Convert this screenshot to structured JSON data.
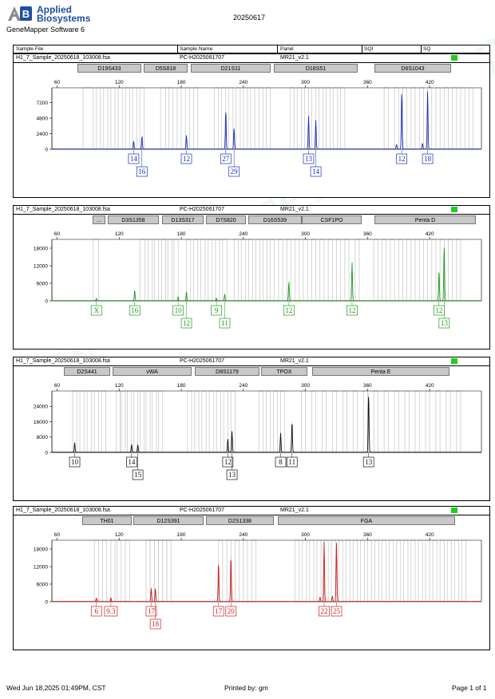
{
  "header": {
    "logo_line1": "Applied",
    "logo_line2": "Biosystems",
    "software": "GeneMapper Software 6",
    "report_date": "20250617",
    "columns": [
      "Sample File",
      "Sample Name",
      "Panel",
      "SQI",
      "SQ"
    ]
  },
  "colors": {
    "blue": "#1a2fb8",
    "green": "#1f9a1f",
    "black": "#111111",
    "red": "#cc1f1f",
    "quality": "#22cc22"
  },
  "panels": [
    {
      "sample_file": "H1_7_Sample_20250618_103008.fsa",
      "sample_name": "PC-H2025061707",
      "panel_name": "MR21_v2.1",
      "loci": [
        "D19S433",
        "D5S818",
        "D21S11",
        "D18S51",
        "D6S1043"
      ]
    },
    {
      "sample_file": "H1_7_Sample_20250618_103008.fsa",
      "sample_name": "PC-H2025061707",
      "panel_name": "MR21_v2.1",
      "loci": [
        "...",
        "D3S1358",
        "D13S317",
        "D7S820",
        "D16S539",
        "CSF1PO",
        "Penta D"
      ]
    },
    {
      "sample_file": "H1_7_Sample_20250618_103008.fsa",
      "sample_name": "PC-H2025061707",
      "panel_name": "MR21_v2.1",
      "loci": [
        "D2S441",
        "vWA",
        "D8S1179",
        "TPOX",
        "Penta E"
      ]
    },
    {
      "sample_file": "H1_7_Sample_20250618_103008.fsa",
      "sample_name": "PC-H2025061707",
      "panel_name": "MR21_v2.1",
      "loci": [
        "TH01",
        "D12S391",
        "D2S1338",
        "FGA"
      ]
    }
  ],
  "chart_data": [
    {
      "type": "line",
      "dye": "blue",
      "x_ticks": [
        60,
        120,
        180,
        240,
        300,
        360,
        420
      ],
      "y_ticks": [
        0,
        2400,
        4800,
        7200
      ],
      "xlim": [
        55,
        470
      ],
      "ylim": [
        0,
        9500
      ],
      "bins": [
        [
          85,
          95
        ],
        [
          98,
          102
        ],
        [
          105,
          109
        ],
        [
          112,
          116
        ],
        [
          119,
          123
        ],
        [
          126,
          130
        ],
        [
          133,
          137
        ],
        [
          140,
          144
        ],
        [
          160,
          165
        ],
        [
          168,
          172
        ],
        [
          176,
          180
        ],
        [
          184,
          188
        ],
        [
          192,
          196
        ],
        [
          212,
          216
        ],
        [
          219,
          223
        ],
        [
          226,
          230
        ],
        [
          233,
          237
        ],
        [
          240,
          244
        ],
        [
          247,
          251
        ],
        [
          255,
          259
        ],
        [
          262,
          266
        ],
        [
          285,
          289
        ],
        [
          292,
          296
        ],
        [
          299,
          303
        ],
        [
          306,
          310
        ],
        [
          313,
          317
        ],
        [
          320,
          324
        ],
        [
          327,
          331
        ],
        [
          334,
          338
        ],
        [
          376,
          380
        ],
        [
          386,
          390
        ],
        [
          394,
          398
        ],
        [
          402,
          406
        ],
        [
          410,
          414
        ],
        [
          418,
          422
        ],
        [
          426,
          430
        ],
        [
          434,
          438
        ],
        [
          442,
          446
        ],
        [
          450,
          454
        ],
        [
          458,
          462
        ]
      ],
      "peaks": [
        {
          "x": 134,
          "height": 1200,
          "allele": "14"
        },
        {
          "x": 142,
          "height": 2000,
          "allele": "16"
        },
        {
          "x": 185,
          "height": 2100,
          "allele": "12"
        },
        {
          "x": 223,
          "height": 6100,
          "allele": "27"
        },
        {
          "x": 231,
          "height": 3300,
          "allele": "29"
        },
        {
          "x": 303,
          "height": 5100,
          "allele": "13"
        },
        {
          "x": 310,
          "height": 4500,
          "allele": "14"
        },
        {
          "x": 393,
          "height": 9000,
          "allele": "12"
        },
        {
          "x": 418,
          "height": 9000,
          "allele": "18"
        }
      ],
      "minor_peaks": [
        {
          "x": 388,
          "height": 700
        },
        {
          "x": 413,
          "height": 900
        }
      ]
    },
    {
      "type": "line",
      "dye": "green",
      "x_ticks": [
        60,
        120,
        180,
        240,
        300,
        360,
        420
      ],
      "y_ticks": [
        0,
        6000,
        12000,
        18000
      ],
      "xlim": [
        55,
        470
      ],
      "ylim": [
        0,
        21000
      ],
      "bins": [
        [
          95,
          100
        ],
        [
          140,
          145
        ],
        [
          148,
          152
        ],
        [
          154,
          158
        ],
        [
          161,
          165
        ],
        [
          167,
          171
        ],
        [
          173,
          177
        ],
        [
          185,
          189
        ],
        [
          192,
          196
        ],
        [
          199,
          203
        ],
        [
          206,
          210
        ],
        [
          213,
          217
        ],
        [
          220,
          224
        ],
        [
          231,
          235
        ],
        [
          238,
          242
        ],
        [
          245,
          249
        ],
        [
          252,
          256
        ],
        [
          259,
          263
        ],
        [
          266,
          270
        ],
        [
          274,
          278
        ],
        [
          282,
          286
        ],
        [
          290,
          294
        ],
        [
          298,
          302
        ],
        [
          306,
          310
        ],
        [
          314,
          318
        ],
        [
          322,
          326
        ],
        [
          330,
          334
        ],
        [
          338,
          342
        ],
        [
          348,
          352
        ],
        [
          366,
          370
        ],
        [
          374,
          378
        ],
        [
          382,
          386
        ],
        [
          390,
          394
        ],
        [
          398,
          402
        ],
        [
          406,
          410
        ],
        [
          414,
          418
        ],
        [
          422,
          426
        ],
        [
          430,
          434
        ],
        [
          438,
          442
        ],
        [
          446,
          450
        ]
      ],
      "peaks": [
        {
          "x": 98,
          "height": 800,
          "allele": "X"
        },
        {
          "x": 135,
          "height": 3500,
          "allele": "16"
        },
        {
          "x": 177,
          "height": 1300,
          "allele": "10"
        },
        {
          "x": 185,
          "height": 3000,
          "allele": "12"
        },
        {
          "x": 214,
          "height": 800,
          "allele": "9"
        },
        {
          "x": 222,
          "height": 2200,
          "allele": "11"
        },
        {
          "x": 284,
          "height": 6500,
          "allele": "12"
        },
        {
          "x": 345,
          "height": 13000,
          "allele": "12"
        },
        {
          "x": 429,
          "height": 10000,
          "allele": "12"
        },
        {
          "x": 434,
          "height": 19000,
          "allele": "13"
        }
      ],
      "minor_peaks": []
    },
    {
      "type": "line",
      "dye": "black",
      "x_ticks": [
        60,
        120,
        180,
        240,
        300,
        360,
        420
      ],
      "y_ticks": [
        0,
        8000,
        16000,
        24000
      ],
      "xlim": [
        55,
        470
      ],
      "ylim": [
        0,
        32000
      ],
      "bins": [
        [
          75,
          79
        ],
        [
          82,
          86
        ],
        [
          89,
          93
        ],
        [
          96,
          100
        ],
        [
          103,
          107
        ],
        [
          117,
          121
        ],
        [
          122,
          126
        ],
        [
          128,
          132
        ],
        [
          134,
          138
        ],
        [
          140,
          144
        ],
        [
          146,
          150
        ],
        [
          152,
          156
        ],
        [
          158,
          162
        ],
        [
          186,
          190
        ],
        [
          193,
          197
        ],
        [
          200,
          204
        ],
        [
          207,
          211
        ],
        [
          214,
          218
        ],
        [
          221,
          225
        ],
        [
          228,
          232
        ],
        [
          255,
          259
        ],
        [
          262,
          266
        ],
        [
          269,
          273
        ],
        [
          276,
          280
        ],
        [
          296,
          300
        ],
        [
          306,
          310
        ],
        [
          316,
          320
        ],
        [
          326,
          330
        ],
        [
          336,
          340
        ],
        [
          346,
          350
        ],
        [
          356,
          360
        ],
        [
          366,
          370
        ],
        [
          376,
          380
        ],
        [
          386,
          390
        ],
        [
          396,
          400
        ],
        [
          406,
          410
        ],
        [
          416,
          420
        ],
        [
          426,
          430
        ],
        [
          436,
          440
        ],
        [
          446,
          450
        ]
      ],
      "peaks": [
        {
          "x": 77,
          "height": 5000,
          "allele": "10"
        },
        {
          "x": 132,
          "height": 4000,
          "allele": "14"
        },
        {
          "x": 138,
          "height": 4000,
          "allele": "15"
        },
        {
          "x": 225,
          "height": 7000,
          "allele": "12"
        },
        {
          "x": 229,
          "height": 11000,
          "allele": "13"
        },
        {
          "x": 276,
          "height": 10000,
          "allele": "8"
        },
        {
          "x": 287,
          "height": 16000,
          "allele": "11"
        },
        {
          "x": 361,
          "height": 31000,
          "allele": "13"
        }
      ],
      "minor_peaks": []
    },
    {
      "type": "line",
      "dye": "red",
      "x_ticks": [
        60,
        120,
        180,
        240,
        300,
        360,
        420
      ],
      "y_ticks": [
        0,
        6000,
        12000,
        18000
      ],
      "xlim": [
        55,
        470
      ],
      "ylim": [
        0,
        21000
      ],
      "bins": [
        [
          96,
          100
        ],
        [
          104,
          108
        ],
        [
          112,
          116
        ],
        [
          118,
          122
        ],
        [
          126,
          130
        ],
        [
          146,
          150
        ],
        [
          150,
          154
        ],
        [
          154,
          158
        ],
        [
          158,
          162
        ],
        [
          162,
          166
        ],
        [
          166,
          170
        ],
        [
          216,
          220
        ],
        [
          224,
          228
        ],
        [
          232,
          236
        ],
        [
          240,
          244
        ],
        [
          248,
          252
        ],
        [
          290,
          294
        ],
        [
          297,
          301
        ],
        [
          304,
          308
        ],
        [
          311,
          315
        ],
        [
          318,
          322
        ],
        [
          325,
          329
        ],
        [
          332,
          336
        ],
        [
          339,
          343
        ],
        [
          346,
          350
        ],
        [
          353,
          357
        ],
        [
          360,
          364
        ],
        [
          367,
          371
        ],
        [
          374,
          378
        ],
        [
          381,
          385
        ],
        [
          388,
          392
        ],
        [
          395,
          399
        ],
        [
          402,
          406
        ],
        [
          409,
          413
        ],
        [
          416,
          420
        ],
        [
          423,
          427
        ],
        [
          430,
          434
        ],
        [
          437,
          441
        ],
        [
          444,
          448
        ],
        [
          451,
          455
        ]
      ],
      "peaks": [
        {
          "x": 98,
          "height": 1200,
          "allele": "6"
        },
        {
          "x": 112,
          "height": 1200,
          "allele": "9.3"
        },
        {
          "x": 151,
          "height": 4500,
          "allele": "17"
        },
        {
          "x": 155,
          "height": 4500,
          "allele": "18"
        },
        {
          "x": 216,
          "height": 13500,
          "allele": "17"
        },
        {
          "x": 228,
          "height": 15500,
          "allele": "20"
        },
        {
          "x": 318,
          "height": 20500,
          "allele": "22"
        },
        {
          "x": 330,
          "height": 20000,
          "allele": "25"
        }
      ],
      "minor_peaks": [
        {
          "x": 314,
          "height": 1500
        },
        {
          "x": 326,
          "height": 1800
        }
      ]
    }
  ],
  "footer": {
    "printed_at": "Wed Jun 18,2025 01:49PM, CST",
    "printed_by": "Printed by: gm",
    "page": "Page 1 of 1"
  }
}
